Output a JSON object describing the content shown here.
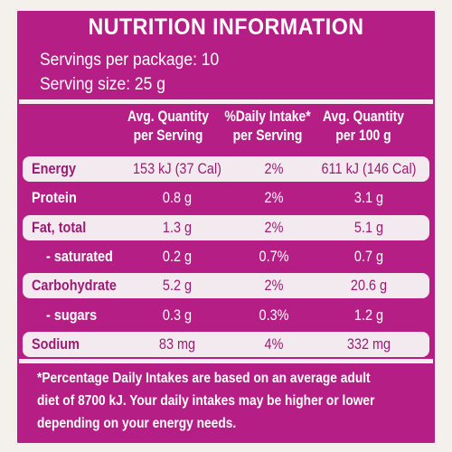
{
  "panel": {
    "title": "NUTRITION INFORMATION",
    "servings_per_package": "Servings per package: 10",
    "serving_size": "Serving size: 25 g"
  },
  "columns": {
    "col1_line1": "Avg. Quantity",
    "col1_line2": "per Serving",
    "col2_line1": "%Daily Intake*",
    "col2_line2": "per Serving",
    "col3_line1": "Avg. Quantity",
    "col3_line2": "per 100 g"
  },
  "rows": [
    {
      "nutrient": "Energy",
      "per_serving": "153 kJ (37 Cal)",
      "daily_intake": "2%",
      "per_100g": "611 kJ (146 Cal)"
    },
    {
      "nutrient": "Protein",
      "per_serving": "0.8 g",
      "daily_intake": "2%",
      "per_100g": "3.1 g"
    },
    {
      "nutrient": "Fat, total",
      "per_serving": "1.3 g",
      "daily_intake": "2%",
      "per_100g": "5.1 g"
    },
    {
      "nutrient": "- saturated",
      "per_serving": "0.2 g",
      "daily_intake": "0.7%",
      "per_100g": "0.7 g"
    },
    {
      "nutrient": "Carbohydrate",
      "per_serving": "5.2 g",
      "daily_intake": "2%",
      "per_100g": "20.6 g"
    },
    {
      "nutrient": "- sugars",
      "per_serving": "0.3 g",
      "daily_intake": "0.3%",
      "per_100g": "1.2 g"
    },
    {
      "nutrient": "Sodium",
      "per_serving": "83 mg",
      "daily_intake": "4%",
      "per_100g": "332 mg"
    }
  ],
  "footnote": {
    "line1": "*Percentage Daily Intakes are based on an average adult",
    "line2": "diet of 8700 kJ. Your daily intakes may be higher or lower",
    "line3": "depending on your energy needs."
  },
  "colors": {
    "panel_background": "#b51f85",
    "shaded_row": "#f3eaef",
    "shaded_text": "#9c1b72",
    "plain_text": "#ffffff"
  }
}
